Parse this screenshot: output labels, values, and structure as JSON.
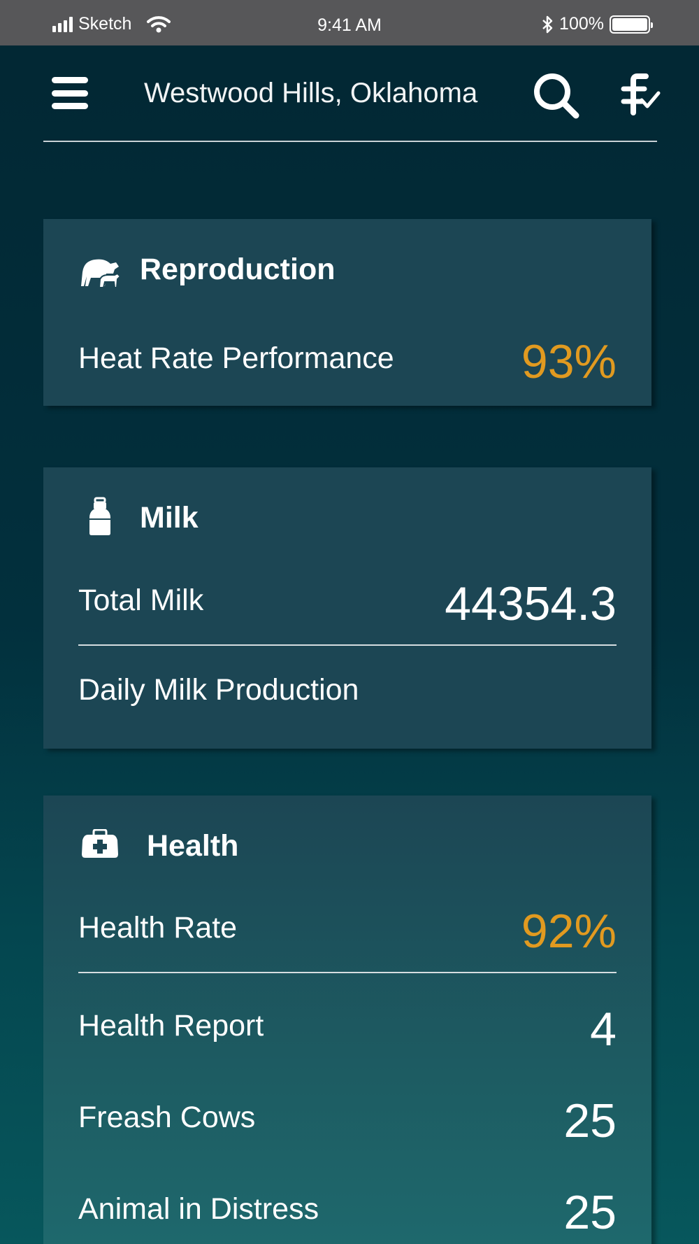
{
  "status_bar": {
    "carrier": "Sketch",
    "time": "9:41 AM",
    "battery": "100%",
    "icons": [
      "signal-icon",
      "wifi-icon",
      "bluetooth-icon",
      "battery-icon"
    ]
  },
  "header": {
    "location": "Westwood Hills, Oklahoma",
    "icons": [
      "menu-icon",
      "search-icon",
      "filter-check-icon"
    ]
  },
  "cards": {
    "reproduction": {
      "title": "Reproduction",
      "icon": "cow-calf-icon",
      "rows": [
        {
          "label": "Heat Rate Performance",
          "value": "93%"
        }
      ]
    },
    "milk": {
      "title": "Milk",
      "icon": "milk-can-icon",
      "rows": [
        {
          "label": "Total Milk",
          "value": "44354.3"
        },
        {
          "label": "Daily Milk Production",
          "value": ""
        }
      ]
    },
    "health": {
      "title": "Health",
      "icon": "medical-kit-icon",
      "rows": [
        {
          "label": "Health Rate",
          "value": "92%"
        },
        {
          "label": "Health Report",
          "value": "4"
        },
        {
          "label": "Freash Cows",
          "value": "25"
        },
        {
          "label": "Animal in Distress",
          "value": "25"
        }
      ]
    }
  },
  "colors": {
    "accent": "#e19a20",
    "card_bg": "#1c4654",
    "page_bg": "#022733",
    "status_bar_bg": "#575759"
  }
}
